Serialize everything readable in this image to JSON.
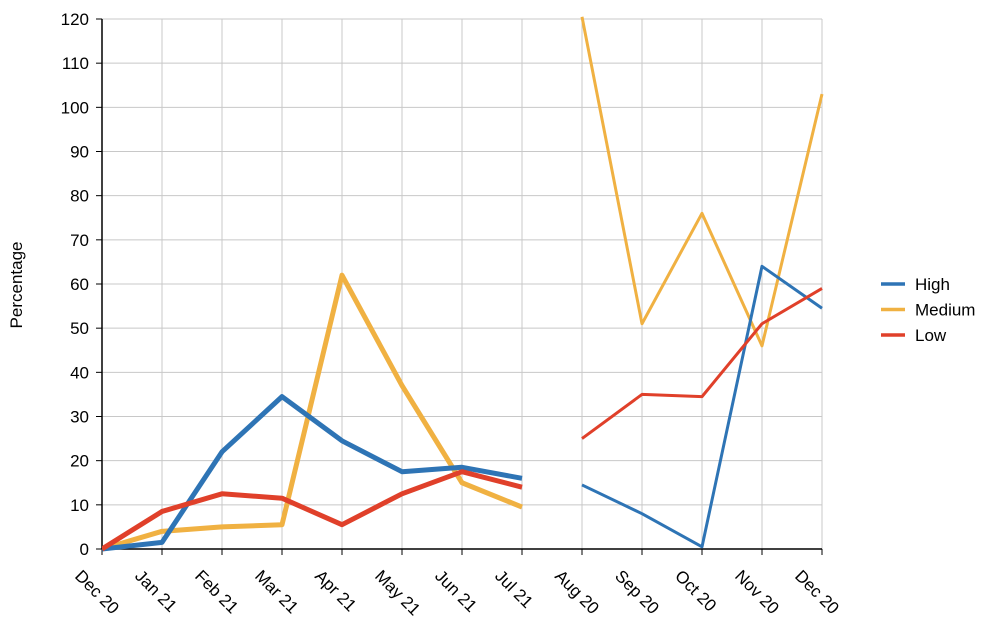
{
  "chart_data": {
    "type": "line",
    "ylabel": "Percentage",
    "ylim": [
      0,
      120
    ],
    "yticks": [
      0,
      10,
      20,
      30,
      40,
      50,
      60,
      70,
      80,
      90,
      100,
      110,
      120
    ],
    "categories": [
      "Dec 20",
      "Jan 21",
      "Feb 21",
      "Mar 21",
      "Apr 21",
      "May 21",
      "Jun 21",
      "Jul 21",
      "Aug 20",
      "Sep 20",
      "Oct 20",
      "Nov 20",
      "Dec 20"
    ],
    "grid": true,
    "legend_position": "right",
    "series": [
      {
        "name": "High",
        "color": "#2e74b5",
        "segments": [
          {
            "start": 0,
            "values": [
              0,
              1.5,
              22,
              34.5,
              24.5,
              17.5,
              18.5,
              16
            ],
            "width": "thick"
          },
          {
            "start": 8,
            "values": [
              14.5,
              8,
              0.5,
              64,
              54.5
            ],
            "width": "thin"
          }
        ]
      },
      {
        "name": "Medium",
        "color": "#f0b142",
        "segments": [
          {
            "start": 0,
            "values": [
              0,
              4,
              5,
              5.5,
              62,
              37,
              15,
              9.5
            ],
            "width": "thick"
          },
          {
            "start": 8,
            "values": [
              120.5,
              51,
              76,
              46,
              103
            ],
            "width": "thin"
          }
        ]
      },
      {
        "name": "Low",
        "color": "#e0402a",
        "segments": [
          {
            "start": 0,
            "values": [
              0,
              8.5,
              12.5,
              11.5,
              5.5,
              12.5,
              17.5,
              14
            ],
            "width": "thick"
          },
          {
            "start": 8,
            "values": [
              25,
              35,
              34.5,
              51,
              59
            ],
            "width": "thin"
          }
        ]
      }
    ]
  }
}
